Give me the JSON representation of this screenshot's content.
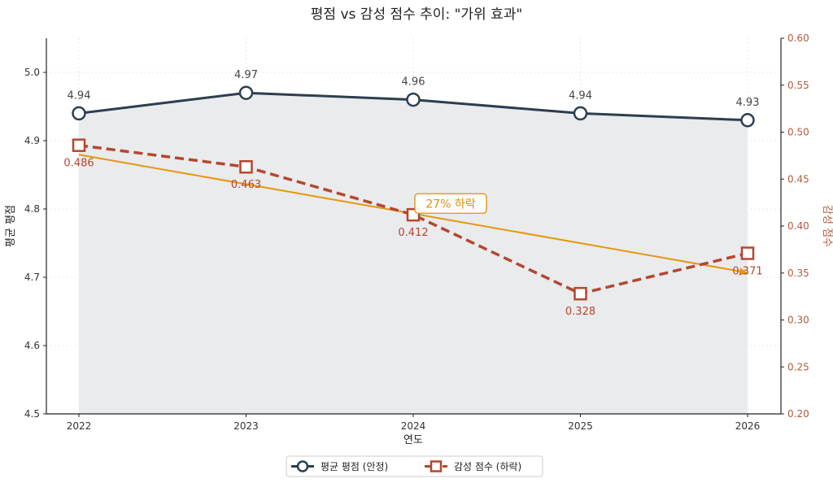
{
  "chart_data": {
    "type": "line",
    "title": "평점 vs 감성 점수 추이: \"가위 효과\"",
    "xlabel": "연도",
    "ylabel_left": "평균 평점",
    "ylabel_right": "감성 점수",
    "x": [
      "2022",
      "2023",
      "2024",
      "2025",
      "2026"
    ],
    "ylim_left": [
      4.5,
      5.05
    ],
    "ylim_right": [
      0.2,
      0.6
    ],
    "yticks_left": [
      "4.5",
      "4.6",
      "4.7",
      "4.8",
      "4.9",
      "5.0"
    ],
    "yticks_right": [
      "0.20",
      "0.25",
      "0.30",
      "0.35",
      "0.40",
      "0.45",
      "0.50",
      "0.55",
      "0.60"
    ],
    "grid": true,
    "legend_position": "bottom-center",
    "series": [
      {
        "name": "평균 평점 (안정)",
        "axis": "left",
        "values": [
          4.94,
          4.97,
          4.96,
          4.94,
          4.93
        ],
        "labels": [
          "4.94",
          "4.97",
          "4.96",
          "4.94",
          "4.93"
        ],
        "color": "#2c3e50",
        "marker": "circle",
        "style": "solid"
      },
      {
        "name": "감성 점수 (하락)",
        "axis": "right",
        "values": [
          0.486,
          0.463,
          0.412,
          0.328,
          0.371
        ],
        "labels": [
          "0.486",
          "0.463",
          "0.412",
          "0.328",
          "0.371"
        ],
        "color": "#b4472f",
        "marker": "square",
        "style": "dashed"
      }
    ],
    "trend_line": {
      "axis": "right",
      "start": [
        "2022",
        0.476
      ],
      "end": [
        "2026",
        0.35
      ],
      "color": "#e8960c"
    },
    "annotation": {
      "text": "27% 하락",
      "x": "2024",
      "y": 0.424,
      "color": "#e08e0b"
    },
    "colors": {
      "fill": "#e9ebed",
      "grid": "#dddddd"
    }
  }
}
